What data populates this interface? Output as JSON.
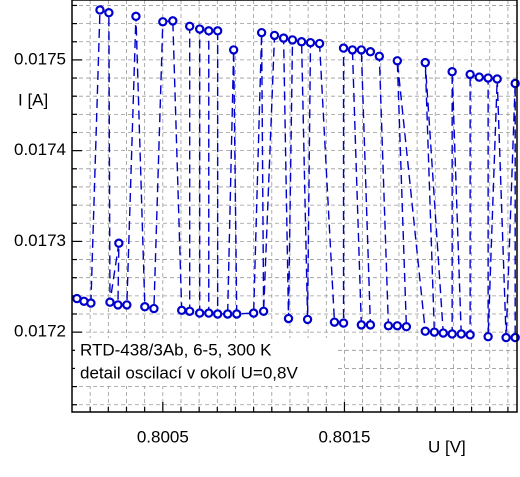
{
  "chart_data": {
    "type": "scatter",
    "x_label": "U [V]",
    "y_label": "I [A]",
    "annotations": [
      "RTD-438/3Ab, 6-5, 300 K",
      "detail oscilací v okolí U=0,8V"
    ],
    "color": "#0000cc",
    "line_style": "dashed",
    "grid": true,
    "xlim": [
      0.8,
      0.80245
    ],
    "ylim": [
      0.017112,
      0.017566
    ],
    "xticks": [
      0.8005,
      0.8015
    ],
    "yticks": [
      0.0172,
      0.0173,
      0.0174,
      0.0175
    ],
    "x_minor_ticks": [
      0.8001,
      0.8002,
      0.8003,
      0.8004,
      0.8006,
      0.8007,
      0.8008,
      0.8009,
      0.801,
      0.8011,
      0.8012,
      0.8013,
      0.8014,
      0.8016,
      0.8017,
      0.8018,
      0.8019,
      0.802,
      0.8021,
      0.8022,
      0.8023,
      0.8024
    ],
    "y_minor_ticks": [
      0.01712,
      0.01714,
      0.01716,
      0.01718,
      0.01722,
      0.01724,
      0.01726,
      0.01728,
      0.01732,
      0.01734,
      0.01736,
      0.01738,
      0.01742,
      0.01744,
      0.01746,
      0.01748,
      0.01752,
      0.01754,
      0.01756
    ],
    "x": [
      0.800027,
      0.800066,
      0.800104,
      0.800154,
      0.800203,
      0.800209,
      0.800258,
      0.800253,
      0.800302,
      0.800352,
      0.800401,
      0.800451,
      0.8005,
      0.800555,
      0.800604,
      0.800648,
      0.800648,
      0.800703,
      0.800703,
      0.800753,
      0.800753,
      0.800802,
      0.800802,
      0.800857,
      0.80089,
      0.800907,
      0.801,
      0.801044,
      0.801055,
      0.801115,
      0.801165,
      0.801192,
      0.801214,
      0.801264,
      0.801297,
      0.801313,
      0.801363,
      0.801445,
      0.801495,
      0.801495,
      0.801544,
      0.801593,
      0.801643,
      0.801593,
      0.801643,
      0.801692,
      0.801742,
      0.801791,
      0.801841,
      0.801791,
      0.801945,
      0.801995,
      0.801945,
      0.802044,
      0.802093,
      0.802093,
      0.802143,
      0.802192,
      0.802192,
      0.802242,
      0.802291,
      0.802291,
      0.802341,
      0.80239,
      0.80244,
      0.80244
    ],
    "values": [
      0.017237,
      0.017234,
      0.017232,
      0.017555,
      0.017552,
      0.017233,
      0.017298,
      0.01723,
      0.01723,
      0.017548,
      0.017228,
      0.017226,
      0.017542,
      0.017543,
      0.017224,
      0.017223,
      0.017537,
      0.017534,
      0.017221,
      0.017221,
      0.017532,
      0.017532,
      0.01722,
      0.01722,
      0.017511,
      0.01722,
      0.017221,
      0.01753,
      0.017223,
      0.017527,
      0.017524,
      0.017215,
      0.017522,
      0.01752,
      0.017214,
      0.017519,
      0.017518,
      0.017211,
      0.01721,
      0.017513,
      0.017511,
      0.017208,
      0.017208,
      0.017511,
      0.017509,
      0.017504,
      0.017207,
      0.017207,
      0.017206,
      0.017499,
      0.017201,
      0.0172,
      0.017497,
      0.017199,
      0.017198,
      0.017487,
      0.017198,
      0.017197,
      0.017484,
      0.017481,
      0.01748,
      0.017195,
      0.017479,
      0.017194,
      0.017474,
      0.017194
    ]
  }
}
